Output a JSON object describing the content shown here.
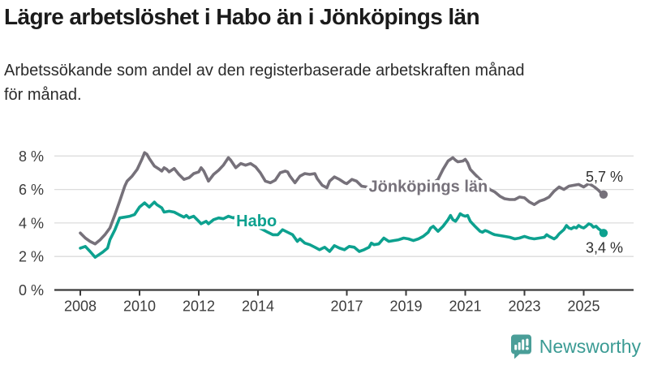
{
  "header": {
    "title": "Lägre arbetslöshet i Habo än i Jönköpings län",
    "subtitle": "Arbetssökande som andel av den registerbaserade arbetskraften månad\nför månad."
  },
  "chart_data": {
    "type": "line",
    "unit": "%",
    "grid": true,
    "ylim": [
      0,
      8.6
    ],
    "xlim": [
      2008,
      2025.75
    ],
    "y_ticks": [
      {
        "value": 0,
        "label": "0 %"
      },
      {
        "value": 2,
        "label": "2 %"
      },
      {
        "value": 4,
        "label": "4 %"
      },
      {
        "value": 6,
        "label": "6 %"
      },
      {
        "value": 8,
        "label": "8 %"
      }
    ],
    "x_ticks": [
      {
        "year": 2008,
        "label": "2008"
      },
      {
        "year": 2010,
        "label": "2010"
      },
      {
        "year": 2012,
        "label": "2012"
      },
      {
        "year": 2014,
        "label": "2014"
      },
      {
        "year": 2017,
        "label": "2017"
      },
      {
        "year": 2019,
        "label": "2019"
      },
      {
        "year": 2021,
        "label": "2021"
      },
      {
        "year": 2023,
        "label": "2023"
      },
      {
        "year": 2025,
        "label": "2025"
      }
    ],
    "series": [
      {
        "name": "Jönköpings län",
        "color": "#76717A",
        "end_label": "5,7 %",
        "end_value": 5.7,
        "label_at": {
          "t": 2019.75,
          "v": 6.2
        },
        "points": [
          [
            2008.0,
            3.4
          ],
          [
            2008.17,
            3.1
          ],
          [
            2008.33,
            2.9
          ],
          [
            2008.5,
            2.75
          ],
          [
            2008.67,
            3.0
          ],
          [
            2008.83,
            3.3
          ],
          [
            2009.0,
            3.7
          ],
          [
            2009.17,
            4.5
          ],
          [
            2009.33,
            5.3
          ],
          [
            2009.5,
            6.2
          ],
          [
            2009.58,
            6.5
          ],
          [
            2009.75,
            6.8
          ],
          [
            2009.92,
            7.2
          ],
          [
            2010.0,
            7.5
          ],
          [
            2010.08,
            7.8
          ],
          [
            2010.17,
            8.2
          ],
          [
            2010.25,
            8.1
          ],
          [
            2010.33,
            7.85
          ],
          [
            2010.5,
            7.4
          ],
          [
            2010.67,
            7.2
          ],
          [
            2010.75,
            7.1
          ],
          [
            2010.83,
            7.3
          ],
          [
            2010.92,
            7.2
          ],
          [
            2011.0,
            7.05
          ],
          [
            2011.17,
            7.25
          ],
          [
            2011.33,
            6.9
          ],
          [
            2011.5,
            6.6
          ],
          [
            2011.67,
            6.7
          ],
          [
            2011.83,
            6.95
          ],
          [
            2012.0,
            7.05
          ],
          [
            2012.08,
            7.3
          ],
          [
            2012.17,
            7.1
          ],
          [
            2012.33,
            6.5
          ],
          [
            2012.5,
            6.9
          ],
          [
            2012.67,
            7.15
          ],
          [
            2012.83,
            7.45
          ],
          [
            2013.0,
            7.9
          ],
          [
            2013.08,
            7.75
          ],
          [
            2013.25,
            7.3
          ],
          [
            2013.42,
            7.55
          ],
          [
            2013.58,
            7.45
          ],
          [
            2013.75,
            7.55
          ],
          [
            2013.92,
            7.35
          ],
          [
            2014.08,
            7.0
          ],
          [
            2014.25,
            6.5
          ],
          [
            2014.42,
            6.4
          ],
          [
            2014.58,
            6.55
          ],
          [
            2014.75,
            7.0
          ],
          [
            2014.92,
            7.1
          ],
          [
            2015.0,
            7.05
          ],
          [
            2015.08,
            6.8
          ],
          [
            2015.25,
            6.4
          ],
          [
            2015.42,
            6.8
          ],
          [
            2015.58,
            6.95
          ],
          [
            2015.75,
            6.9
          ],
          [
            2015.92,
            6.95
          ],
          [
            2016.0,
            6.65
          ],
          [
            2016.17,
            6.25
          ],
          [
            2016.33,
            6.1
          ],
          [
            2016.42,
            6.5
          ],
          [
            2016.58,
            6.75
          ],
          [
            2016.75,
            6.6
          ],
          [
            2016.92,
            6.4
          ],
          [
            2017.0,
            6.35
          ],
          [
            2017.17,
            6.6
          ],
          [
            2017.33,
            6.5
          ],
          [
            2017.5,
            6.2
          ],
          [
            2017.67,
            6.15
          ],
          [
            2017.83,
            6.0
          ],
          [
            2017.92,
            6.2
          ],
          [
            2018.08,
            6.1
          ],
          [
            2018.25,
            5.9
          ],
          [
            2018.42,
            5.8
          ],
          [
            2018.58,
            5.8
          ],
          [
            2018.75,
            5.85
          ],
          [
            2018.92,
            5.95
          ],
          [
            2019.08,
            5.9
          ],
          [
            2019.25,
            6.0
          ],
          [
            2019.42,
            6.05
          ],
          [
            2019.58,
            6.1
          ],
          [
            2019.75,
            6.2
          ],
          [
            2019.92,
            6.4
          ],
          [
            2020.08,
            6.6
          ],
          [
            2020.25,
            7.2
          ],
          [
            2020.42,
            7.7
          ],
          [
            2020.58,
            7.9
          ],
          [
            2020.67,
            7.75
          ],
          [
            2020.75,
            7.65
          ],
          [
            2020.92,
            7.7
          ],
          [
            2021.0,
            7.8
          ],
          [
            2021.08,
            7.6
          ],
          [
            2021.17,
            7.2
          ],
          [
            2021.33,
            6.9
          ],
          [
            2021.5,
            6.6
          ],
          [
            2021.67,
            6.3
          ],
          [
            2021.83,
            6.0
          ],
          [
            2022.0,
            5.85
          ],
          [
            2022.17,
            5.6
          ],
          [
            2022.33,
            5.45
          ],
          [
            2022.5,
            5.4
          ],
          [
            2022.67,
            5.4
          ],
          [
            2022.83,
            5.55
          ],
          [
            2023.0,
            5.5
          ],
          [
            2023.17,
            5.25
          ],
          [
            2023.33,
            5.1
          ],
          [
            2023.5,
            5.3
          ],
          [
            2023.67,
            5.4
          ],
          [
            2023.83,
            5.55
          ],
          [
            2024.0,
            5.9
          ],
          [
            2024.17,
            6.15
          ],
          [
            2024.33,
            6.0
          ],
          [
            2024.5,
            6.2
          ],
          [
            2024.67,
            6.25
          ],
          [
            2024.83,
            6.3
          ],
          [
            2025.0,
            6.15
          ],
          [
            2025.17,
            6.35
          ],
          [
            2025.33,
            6.2
          ],
          [
            2025.5,
            5.95
          ],
          [
            2025.58,
            5.8
          ],
          [
            2025.67,
            5.7
          ]
        ]
      },
      {
        "name": "Habo",
        "color": "#0DA18F",
        "end_label": "3,4 %",
        "end_value": 3.4,
        "label_at": {
          "t": 2013.95,
          "v": 4.15
        },
        "points": [
          [
            2008.0,
            2.5
          ],
          [
            2008.17,
            2.6
          ],
          [
            2008.33,
            2.3
          ],
          [
            2008.5,
            1.95
          ],
          [
            2008.58,
            2.05
          ],
          [
            2008.75,
            2.25
          ],
          [
            2008.92,
            2.5
          ],
          [
            2009.0,
            3.0
          ],
          [
            2009.17,
            3.6
          ],
          [
            2009.33,
            4.3
          ],
          [
            2009.5,
            4.35
          ],
          [
            2009.67,
            4.4
          ],
          [
            2009.83,
            4.5
          ],
          [
            2010.0,
            4.95
          ],
          [
            2010.17,
            5.2
          ],
          [
            2010.33,
            4.95
          ],
          [
            2010.5,
            5.25
          ],
          [
            2010.58,
            5.1
          ],
          [
            2010.75,
            4.9
          ],
          [
            2010.83,
            4.65
          ],
          [
            2011.0,
            4.7
          ],
          [
            2011.17,
            4.65
          ],
          [
            2011.33,
            4.5
          ],
          [
            2011.5,
            4.35
          ],
          [
            2011.58,
            4.45
          ],
          [
            2011.67,
            4.3
          ],
          [
            2011.83,
            4.4
          ],
          [
            2012.0,
            4.1
          ],
          [
            2012.08,
            3.95
          ],
          [
            2012.25,
            4.1
          ],
          [
            2012.33,
            3.95
          ],
          [
            2012.5,
            4.2
          ],
          [
            2012.67,
            4.3
          ],
          [
            2012.83,
            4.25
          ],
          [
            2013.0,
            4.4
          ],
          [
            2013.17,
            4.3
          ],
          [
            2013.33,
            4.45
          ],
          [
            2013.5,
            4.3
          ],
          [
            2013.67,
            4.1
          ],
          [
            2013.83,
            3.9
          ],
          [
            2014.0,
            3.75
          ],
          [
            2014.17,
            3.6
          ],
          [
            2014.33,
            3.45
          ],
          [
            2014.5,
            3.3
          ],
          [
            2014.67,
            3.3
          ],
          [
            2014.83,
            3.6
          ],
          [
            2015.0,
            3.45
          ],
          [
            2015.17,
            3.3
          ],
          [
            2015.33,
            2.9
          ],
          [
            2015.42,
            3.05
          ],
          [
            2015.58,
            2.8
          ],
          [
            2015.75,
            2.7
          ],
          [
            2015.92,
            2.55
          ],
          [
            2016.08,
            2.4
          ],
          [
            2016.25,
            2.55
          ],
          [
            2016.42,
            2.3
          ],
          [
            2016.58,
            2.65
          ],
          [
            2016.75,
            2.5
          ],
          [
            2016.92,
            2.4
          ],
          [
            2017.08,
            2.6
          ],
          [
            2017.25,
            2.55
          ],
          [
            2017.42,
            2.3
          ],
          [
            2017.58,
            2.4
          ],
          [
            2017.75,
            2.55
          ],
          [
            2017.83,
            2.8
          ],
          [
            2017.92,
            2.7
          ],
          [
            2018.08,
            2.75
          ],
          [
            2018.25,
            3.1
          ],
          [
            2018.42,
            2.9
          ],
          [
            2018.58,
            2.95
          ],
          [
            2018.75,
            3.0
          ],
          [
            2018.92,
            3.1
          ],
          [
            2019.08,
            3.05
          ],
          [
            2019.25,
            2.95
          ],
          [
            2019.42,
            3.05
          ],
          [
            2019.58,
            3.2
          ],
          [
            2019.75,
            3.45
          ],
          [
            2019.83,
            3.7
          ],
          [
            2019.92,
            3.8
          ],
          [
            2020.0,
            3.65
          ],
          [
            2020.08,
            3.5
          ],
          [
            2020.25,
            3.8
          ],
          [
            2020.42,
            4.2
          ],
          [
            2020.5,
            4.45
          ],
          [
            2020.58,
            4.2
          ],
          [
            2020.67,
            4.1
          ],
          [
            2020.75,
            4.3
          ],
          [
            2020.83,
            4.55
          ],
          [
            2020.92,
            4.45
          ],
          [
            2021.0,
            4.4
          ],
          [
            2021.08,
            4.45
          ],
          [
            2021.17,
            4.1
          ],
          [
            2021.33,
            3.8
          ],
          [
            2021.5,
            3.5
          ],
          [
            2021.58,
            3.45
          ],
          [
            2021.67,
            3.55
          ],
          [
            2021.75,
            3.5
          ],
          [
            2021.92,
            3.35
          ],
          [
            2022.0,
            3.3
          ],
          [
            2022.17,
            3.25
          ],
          [
            2022.33,
            3.2
          ],
          [
            2022.5,
            3.15
          ],
          [
            2022.67,
            3.05
          ],
          [
            2022.83,
            3.1
          ],
          [
            2023.0,
            3.2
          ],
          [
            2023.17,
            3.1
          ],
          [
            2023.33,
            3.05
          ],
          [
            2023.5,
            3.1
          ],
          [
            2023.67,
            3.15
          ],
          [
            2023.75,
            3.3
          ],
          [
            2023.83,
            3.2
          ],
          [
            2024.0,
            3.05
          ],
          [
            2024.08,
            3.15
          ],
          [
            2024.17,
            3.35
          ],
          [
            2024.33,
            3.6
          ],
          [
            2024.42,
            3.85
          ],
          [
            2024.5,
            3.7
          ],
          [
            2024.58,
            3.65
          ],
          [
            2024.67,
            3.75
          ],
          [
            2024.75,
            3.7
          ],
          [
            2024.83,
            3.85
          ],
          [
            2024.92,
            3.75
          ],
          [
            2025.0,
            3.7
          ],
          [
            2025.08,
            3.8
          ],
          [
            2025.17,
            3.95
          ],
          [
            2025.25,
            3.9
          ],
          [
            2025.33,
            3.75
          ],
          [
            2025.42,
            3.8
          ],
          [
            2025.5,
            3.65
          ],
          [
            2025.58,
            3.55
          ],
          [
            2025.67,
            3.4
          ]
        ]
      }
    ]
  },
  "footer": {
    "brand": "Newsworthy",
    "logo_color": "#4A9E98"
  }
}
